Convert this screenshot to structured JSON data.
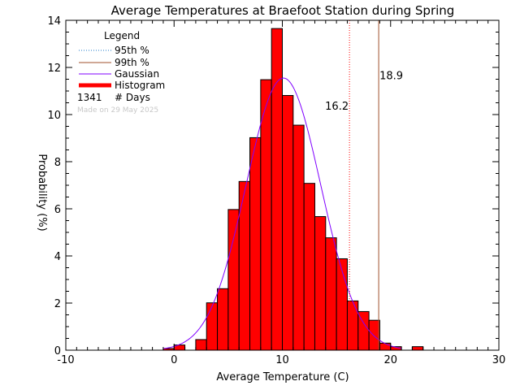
{
  "chart_data": {
    "type": "bar",
    "title": "Average Temperatures at Braefoot Station during Spring",
    "xlabel": "Average Temperature (C)",
    "ylabel": "Probability (%)",
    "xlim": [
      -10,
      30
    ],
    "ylim": [
      0,
      14
    ],
    "xticks": [
      -10,
      0,
      10,
      20,
      30
    ],
    "yticks": [
      0,
      2,
      4,
      6,
      8,
      10,
      12,
      14
    ],
    "bin_width": 1,
    "bins": [
      {
        "x0": -1,
        "value": 0.07
      },
      {
        "x0": 0,
        "value": 0.22
      },
      {
        "x0": 1,
        "value": 0.0
      },
      {
        "x0": 2,
        "value": 0.45
      },
      {
        "x0": 3,
        "value": 2.01
      },
      {
        "x0": 4,
        "value": 2.61
      },
      {
        "x0": 5,
        "value": 5.97
      },
      {
        "x0": 6,
        "value": 7.16
      },
      {
        "x0": 7,
        "value": 9.02
      },
      {
        "x0": 8,
        "value": 11.48
      },
      {
        "x0": 9,
        "value": 13.65
      },
      {
        "x0": 10,
        "value": 10.81
      },
      {
        "x0": 11,
        "value": 9.55
      },
      {
        "x0": 12,
        "value": 7.08
      },
      {
        "x0": 13,
        "value": 5.67
      },
      {
        "x0": 14,
        "value": 4.77
      },
      {
        "x0": 15,
        "value": 3.88
      },
      {
        "x0": 16,
        "value": 2.09
      },
      {
        "x0": 17,
        "value": 1.64
      },
      {
        "x0": 18,
        "value": 1.27
      },
      {
        "x0": 19,
        "value": 0.3
      },
      {
        "x0": 20,
        "value": 0.15
      },
      {
        "x0": 21,
        "value": 0.0
      },
      {
        "x0": 22,
        "value": 0.15
      }
    ],
    "gaussian": {
      "mean": 10.1,
      "sd": 3.45,
      "peak": 11.55
    },
    "percentile_95": 16.2,
    "percentile_99": 18.9,
    "days": 1341,
    "colors": {
      "histogram": "#ff0000",
      "gaussian": "#8000ff",
      "p95": "#1e78c8",
      "p99": "#a0522d"
    },
    "legend": {
      "title": "Legend",
      "entries": [
        "95th %",
        "99th %",
        "Gaussian",
        "Histogram"
      ],
      "days_value": "1341",
      "days_label": "# Days",
      "placement": "top-left"
    },
    "annotations": {
      "p95_label": "16.2",
      "p99_label": "18.9",
      "credit": "Made on 29 May 2025"
    }
  }
}
